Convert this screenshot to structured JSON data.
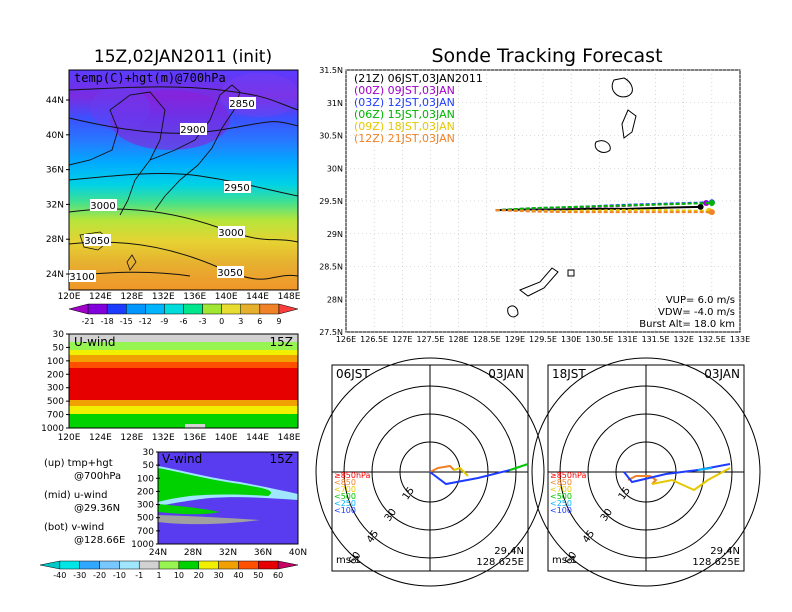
{
  "map_panel": {
    "title": "15Z,02JAN2011 (init)",
    "label": "temp(C)+hgt(m)@700hPa",
    "y_ticks": [
      "44N",
      "40N",
      "36N",
      "32N",
      "28N",
      "24N"
    ],
    "x_ticks": [
      "120E",
      "124E",
      "128E",
      "132E",
      "136E",
      "140E",
      "144E",
      "148E"
    ],
    "contours": [
      "2850",
      "2900",
      "2950",
      "3000",
      "3000",
      "3050",
      "3050",
      "3100"
    ],
    "colorbar_ticks": [
      "-21",
      "-18",
      "-15",
      "-12",
      "-9",
      "-6",
      "-3",
      "0",
      "3",
      "6",
      "9"
    ],
    "colorbar_colors": [
      "#a000c8",
      "#8200dc",
      "#1e3cff",
      "#0096ff",
      "#00b4ff",
      "#00dcdc",
      "#00e68c",
      "#a0e632",
      "#e6dc32",
      "#e6af2d",
      "#f08228",
      "#fa3c3c"
    ]
  },
  "u_panel": {
    "title": "U-wind",
    "time": "15Z",
    "y_ticks": [
      "30",
      "50",
      "100",
      "200",
      "300",
      "500",
      "700",
      "1000"
    ],
    "x_ticks": [
      "120E",
      "124E",
      "128E",
      "132E",
      "136E",
      "140E",
      "144E",
      "148E"
    ]
  },
  "v_panel": {
    "title": "V-wind",
    "time": "15Z",
    "y_ticks": [
      "30",
      "50",
      "100",
      "200",
      "300",
      "500",
      "700",
      "1000"
    ],
    "x_ticks": [
      "24N",
      "28N",
      "32N",
      "36N",
      "40N"
    ]
  },
  "notes": {
    "up1": "(up) tmp+hgt",
    "up2": "@700hPa",
    "mid1": "(mid) u-wind",
    "mid2": "@29.36N",
    "bot1": "(bot) v-wind",
    "bot2": "@128.66E"
  },
  "wind_colorbar": {
    "ticks": [
      "-40",
      "-30",
      "-20",
      "-10",
      "-1",
      "1",
      "10",
      "20",
      "30",
      "40",
      "50",
      "60"
    ],
    "colors": [
      "#00c8c8",
      "#00e6e6",
      "#30a8ff",
      "#78c8ff",
      "#a0e6ff",
      "#d2d2d2",
      "#96f550",
      "#00d200",
      "#f0f000",
      "#f0a000",
      "#ff5000",
      "#e60000",
      "#c80064"
    ]
  },
  "track": {
    "title": "Sonde Tracking Forecast",
    "legend": [
      {
        "text": "(21Z)  06JST,03JAN2011",
        "color": "#000000"
      },
      {
        "text": "(00Z)  09JST,03JAN",
        "color": "#a000c8"
      },
      {
        "text": "(03Z)  12JST,03JAN",
        "color": "#1e3cff"
      },
      {
        "text": "(06Z)  15JST,03JAN",
        "color": "#00b400"
      },
      {
        "text": "(09Z)  18JST,03JAN",
        "color": "#e6c800"
      },
      {
        "text": "(12Z)  21JST,03JAN",
        "color": "#f08228"
      }
    ],
    "info1": "VUP=  6.0  m/s",
    "info2": "VDW= -4.0  m/s",
    "info3": "Burst Alt=  18.0  km",
    "y_ticks": [
      "31.5N",
      "31N",
      "30.5N",
      "30N",
      "29.5N",
      "29N",
      "28.5N",
      "28N",
      "27.5N"
    ],
    "x_ticks": [
      "126E",
      "126.5E",
      "127E",
      "127.5E",
      "128E",
      "128.5E",
      "129E",
      "129.5E",
      "130E",
      "130.5E",
      "131E",
      "131.5E",
      "132E",
      "132.5E",
      "133E"
    ]
  },
  "chart_data": [
    {
      "type": "line",
      "title": "Sonde Tracking Forecast",
      "xlim": [
        126,
        133
      ],
      "ylim": [
        27.5,
        31.5
      ],
      "series": [
        {
          "name": "(21Z)  06JST,03JAN2011",
          "x": [
            128.66,
            129.2,
            129.8,
            130.3,
            131.0,
            131.8,
            132.3
          ],
          "y": [
            29.36,
            29.37,
            29.37,
            29.38,
            29.38,
            29.4,
            29.41
          ]
        },
        {
          "name": "(00Z)  09JST,03JAN",
          "x": [
            128.66,
            129.3,
            130.0,
            130.8,
            131.6,
            132.4
          ],
          "y": [
            29.36,
            29.38,
            29.4,
            29.42,
            29.45,
            29.47
          ]
        },
        {
          "name": "(03Z)  12JST,03JAN",
          "x": [
            128.66,
            129.3,
            130.1,
            130.9,
            131.7,
            132.5
          ],
          "y": [
            29.36,
            29.39,
            29.41,
            29.44,
            29.46,
            29.48
          ]
        },
        {
          "name": "(06Z)  15JST,03JAN",
          "x": [
            128.66,
            129.3,
            130.1,
            130.9,
            131.7,
            132.5
          ],
          "y": [
            29.36,
            29.39,
            29.41,
            29.43,
            29.45,
            29.47
          ]
        },
        {
          "name": "(09Z)  18JST,03JAN",
          "x": [
            128.66,
            129.3,
            130.0,
            130.8,
            131.6,
            132.45
          ],
          "y": [
            29.36,
            29.35,
            29.35,
            29.36,
            29.36,
            29.35
          ]
        },
        {
          "name": "(12Z)  21JST,03JAN",
          "x": [
            128.66,
            129.3,
            130.0,
            130.8,
            131.6,
            132.5
          ],
          "y": [
            29.36,
            29.34,
            29.33,
            29.33,
            29.33,
            29.33
          ]
        }
      ]
    }
  ],
  "hodo1": {
    "left": "06JST",
    "right": "03JAN",
    "unit": "ms-1",
    "lat": "29.4N",
    "lon": "128.625E",
    "rings": [
      "15",
      "30",
      "45",
      "60"
    ],
    "levels": [
      {
        "text": "≥850hPa",
        "color": "#ff0000"
      },
      {
        "text": "<850",
        "color": "#f08228"
      },
      {
        "text": "<700",
        "color": "#e6c800"
      },
      {
        "text": "<500",
        "color": "#00c800"
      },
      {
        "text": "<250",
        "color": "#00b4ff"
      },
      {
        "text": "<100",
        "color": "#1e3cff"
      }
    ]
  },
  "hodo2": {
    "left": "18JST",
    "right": "03JAN",
    "unit": "ms-1",
    "lat": "29.4N",
    "lon": "128.625E",
    "rings": [
      "15",
      "30",
      "45",
      "60"
    ],
    "levels": [
      {
        "text": "≥850hPa",
        "color": "#ff0000"
      },
      {
        "text": "<850",
        "color": "#f08228"
      },
      {
        "text": "<700",
        "color": "#e6c800"
      },
      {
        "text": "<500",
        "color": "#00c800"
      },
      {
        "text": "<250",
        "color": "#00b4ff"
      },
      {
        "text": "<100",
        "color": "#1e3cff"
      }
    ]
  }
}
